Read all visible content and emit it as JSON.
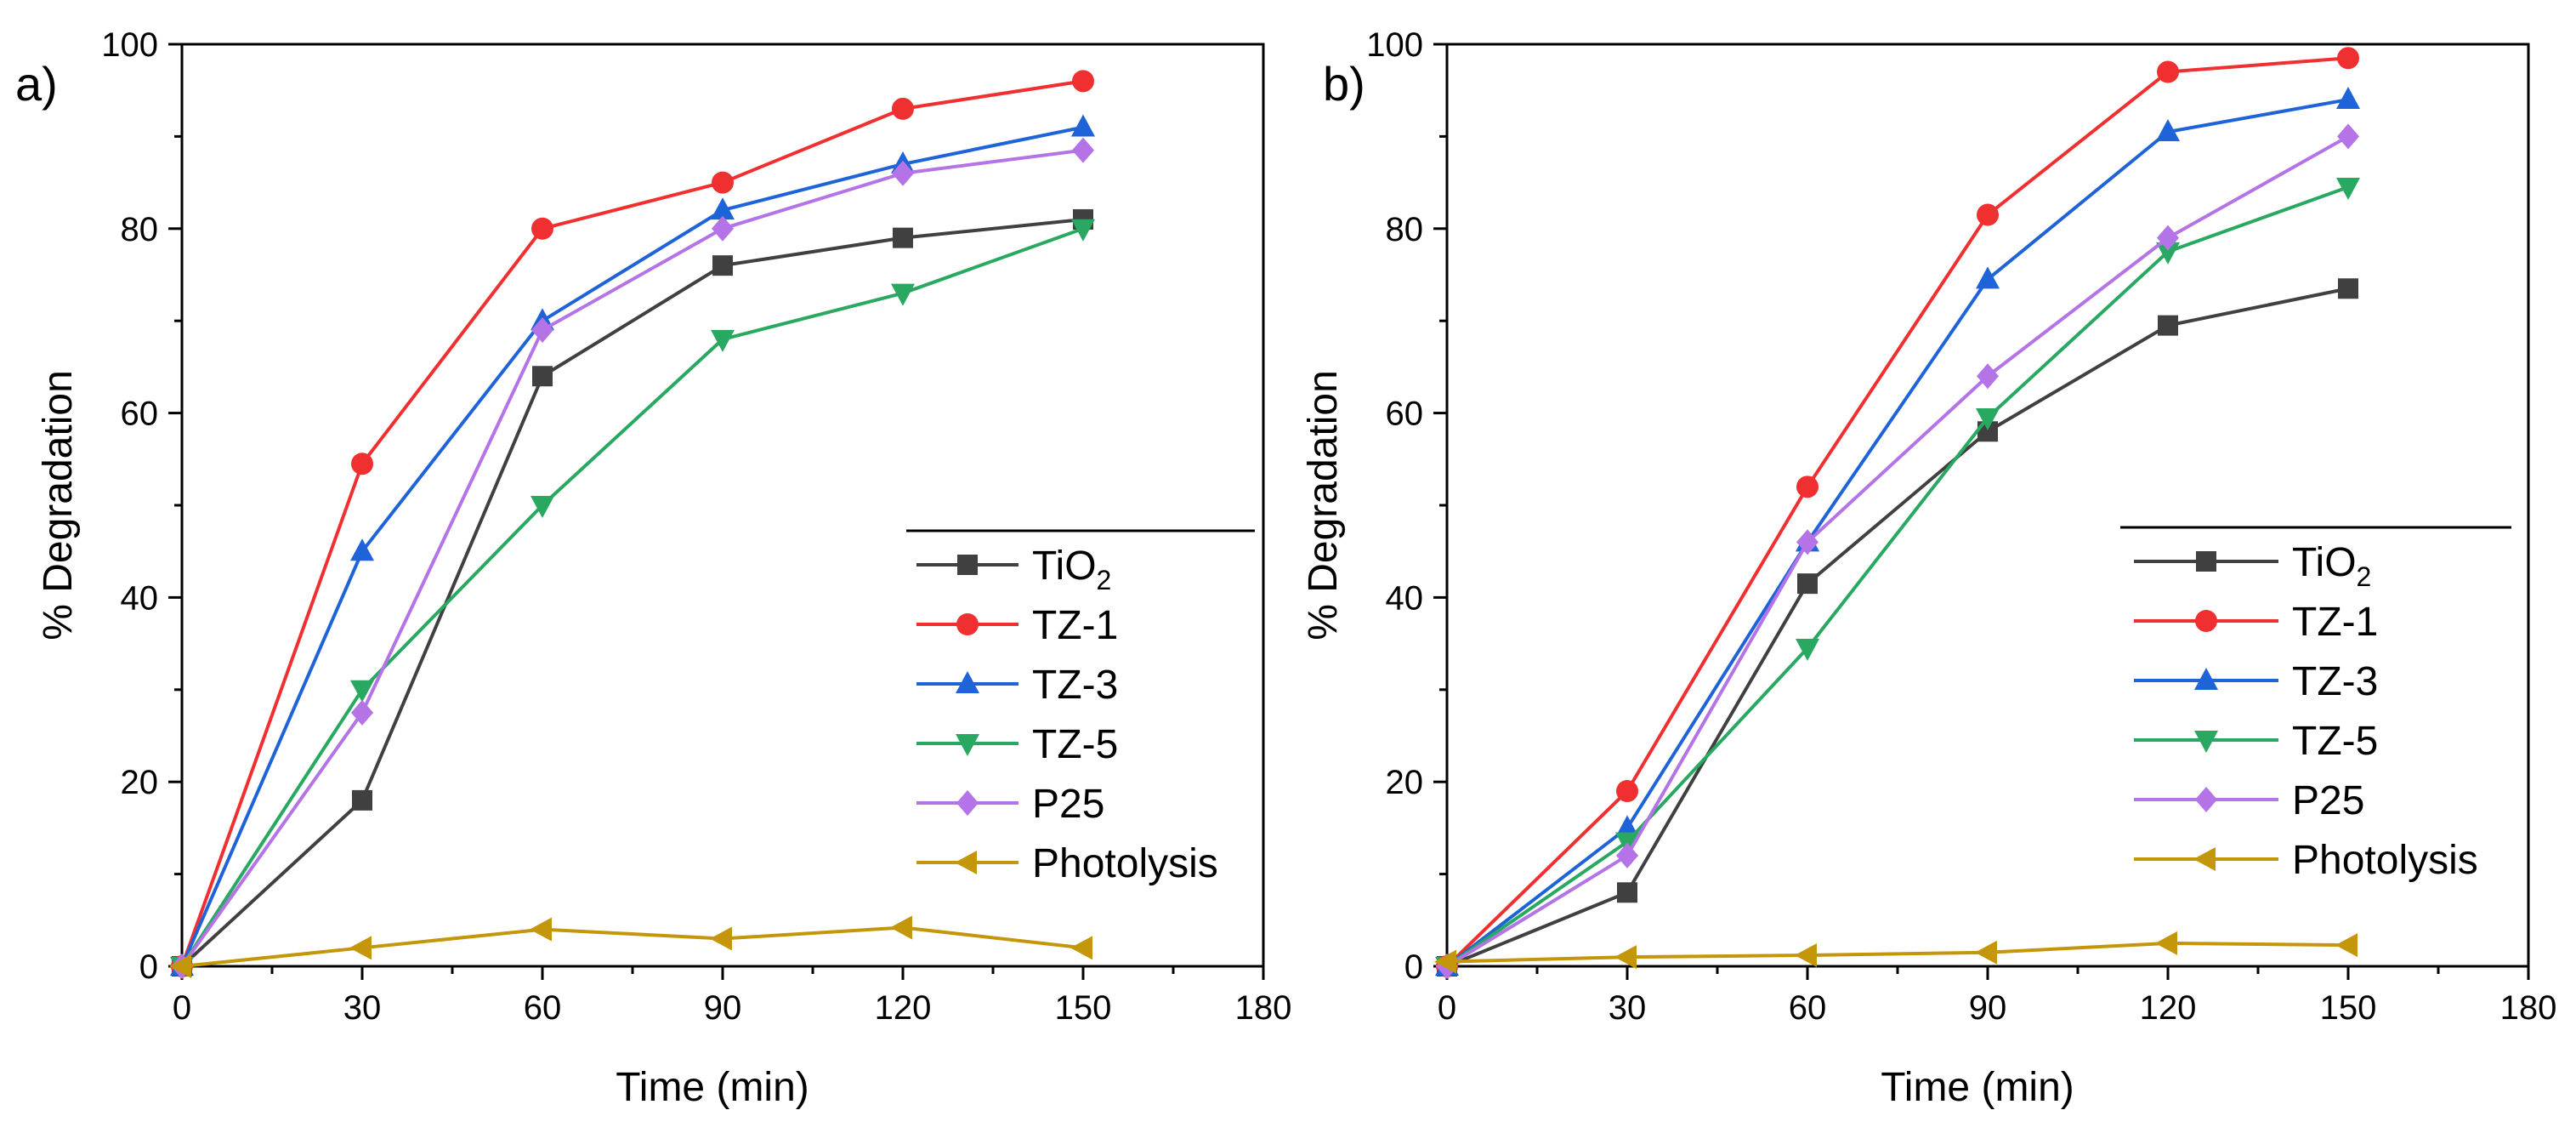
{
  "chart_data": [
    {
      "panel_label": "a)",
      "type": "line",
      "xlabel": "Time (min)",
      "ylabel": "% Degradation",
      "xlim": [
        0,
        180
      ],
      "ylim": [
        0,
        100
      ],
      "xticks": [
        "0",
        "30",
        "60",
        "90",
        "120",
        "150",
        "180"
      ],
      "yticks": [
        "0",
        "20",
        "40",
        "60",
        "80",
        "100"
      ],
      "legend_position": "bottom-right",
      "x": [
        0,
        30,
        60,
        90,
        120,
        150
      ],
      "series": [
        {
          "name": "TiO",
          "name_sub": "2",
          "color": "#404040",
          "marker": "square",
          "values": [
            0,
            18,
            64,
            76,
            79,
            81
          ]
        },
        {
          "name": "TZ-1",
          "name_sub": "",
          "color": "#f03030",
          "marker": "circle",
          "values": [
            0,
            54.5,
            80,
            85,
            93,
            96
          ]
        },
        {
          "name": "TZ-3",
          "name_sub": "",
          "color": "#1e64d8",
          "marker": "triangle-up",
          "values": [
            0,
            45,
            70,
            82,
            87,
            91
          ]
        },
        {
          "name": "TZ-5",
          "name_sub": "",
          "color": "#28a860",
          "marker": "triangle-down",
          "values": [
            0,
            30,
            50,
            68,
            73,
            80
          ]
        },
        {
          "name": "P25",
          "name_sub": "",
          "color": "#b473e6",
          "marker": "diamond",
          "values": [
            0,
            27.5,
            69,
            80,
            86,
            88.5
          ]
        },
        {
          "name": "Photolysis",
          "name_sub": "",
          "color": "#c4960a",
          "marker": "triangle-left",
          "values": [
            0,
            2,
            4,
            3,
            4.2,
            2
          ]
        }
      ]
    },
    {
      "panel_label": "b)",
      "type": "line",
      "xlabel": "Time (min)",
      "ylabel": "% Degradation",
      "xlim": [
        0,
        180
      ],
      "ylim": [
        0,
        100
      ],
      "xticks": [
        "0",
        "30",
        "60",
        "90",
        "120",
        "150",
        "180"
      ],
      "yticks": [
        "0",
        "20",
        "40",
        "60",
        "80",
        "100"
      ],
      "legend_position": "bottom-right",
      "x": [
        0,
        30,
        60,
        90,
        120,
        150
      ],
      "series": [
        {
          "name": "TiO",
          "name_sub": "2",
          "color": "#404040",
          "marker": "square",
          "values": [
            0,
            8,
            41.5,
            58,
            69.5,
            73.5
          ]
        },
        {
          "name": "TZ-1",
          "name_sub": "",
          "color": "#f03030",
          "marker": "circle",
          "values": [
            0,
            19,
            52,
            81.5,
            97,
            98.5
          ]
        },
        {
          "name": "TZ-3",
          "name_sub": "",
          "color": "#1e64d8",
          "marker": "triangle-up",
          "values": [
            0,
            15,
            46,
            74.5,
            90.5,
            94
          ]
        },
        {
          "name": "TZ-5",
          "name_sub": "",
          "color": "#28a860",
          "marker": "triangle-down",
          "values": [
            0,
            13.5,
            34.5,
            59.5,
            77.5,
            84.5
          ]
        },
        {
          "name": "P25",
          "name_sub": "",
          "color": "#b473e6",
          "marker": "diamond",
          "values": [
            0,
            12,
            46,
            64,
            79,
            90
          ]
        },
        {
          "name": "Photolysis",
          "name_sub": "",
          "color": "#c4960a",
          "marker": "triangle-left",
          "values": [
            0.5,
            1,
            1.2,
            1.5,
            2.5,
            2.3
          ]
        }
      ]
    }
  ]
}
